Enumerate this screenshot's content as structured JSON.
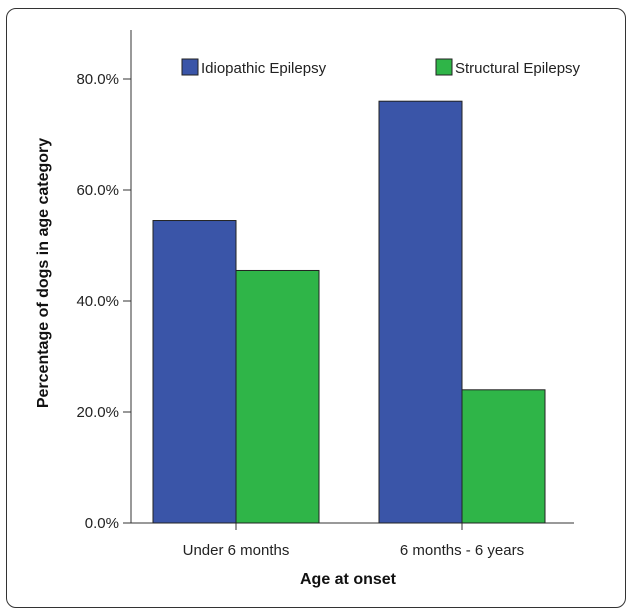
{
  "chart_data": {
    "type": "bar",
    "title": "",
    "xlabel": "Age at onset",
    "ylabel": "Percentage of dogs in age category",
    "categories": [
      "Under 6 months",
      "6 months - 6 years"
    ],
    "series": [
      {
        "name": "Idiopathic Epilepsy",
        "color": "#3a55a8",
        "values": [
          54.5,
          76.0
        ]
      },
      {
        "name": "Structural Epilepsy",
        "color": "#2fb548",
        "values": [
          45.5,
          24.0
        ]
      }
    ],
    "ylim": [
      0,
      80
    ],
    "yticks": [
      0,
      20,
      40,
      60,
      80
    ],
    "ytick_labels": [
      "0.0%",
      "20.0%",
      "40.0%",
      "60.0%",
      "80.0%"
    ],
    "grid": false,
    "legend_position": "top"
  }
}
